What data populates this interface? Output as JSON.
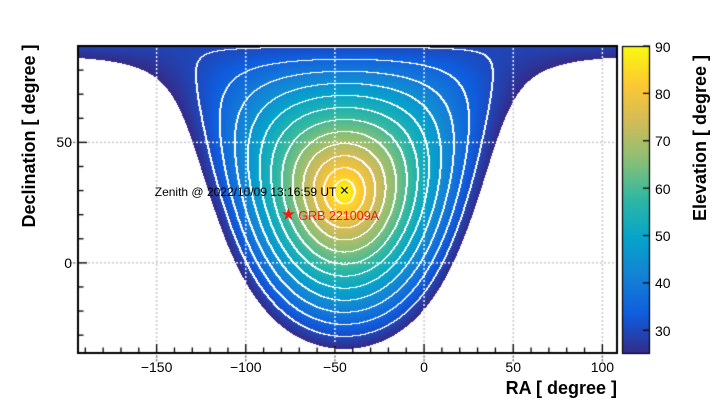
{
  "chart_data": {
    "type": "heatmap",
    "title": "",
    "xlabel": "RA [ degree ]",
    "ylabel": "Declination [ degree ]",
    "colorbar_label": "Elevation [ degree ]",
    "xlim": [
      -194.1,
      108.2
    ],
    "ylim": [
      -37.4,
      90
    ],
    "zlim": [
      25,
      90
    ],
    "x_major_ticks": [
      -150,
      -100,
      -50,
      0,
      50,
      100
    ],
    "x_tick_labels": [
      "−150",
      "−100",
      "−50",
      "0",
      "50",
      "100"
    ],
    "y_major_ticks": [
      0,
      50
    ],
    "y_tick_labels": [
      "0",
      "50"
    ],
    "z_ticks": [
      30,
      40,
      50,
      60,
      70,
      80,
      90
    ],
    "z_tick_labels": [
      "30",
      "40",
      "50",
      "60",
      "70",
      "80",
      "90"
    ],
    "minor_tick_step_deg": 10,
    "grid": true,
    "z_model": "elevation [deg] = asin( sin(dec_z)·sin(dec) + cos(dec_z)·cos(dec)·cos(ra − ra_z) ); filled where elevation ≥ 25",
    "zenith": {
      "ra_deg": -44.7,
      "dec_deg": 29.3,
      "marker": "×",
      "label": "Zenith @ 2022/10/09 13:16:59 UT"
    },
    "grb": {
      "ra_deg": -76.1,
      "dec_deg": 19.3,
      "marker": "★",
      "label": "GRB 221009A"
    },
    "fill_threshold_deg": 25,
    "contour_levels_deg": [
      30,
      35,
      40,
      45,
      50,
      55,
      60,
      65,
      70,
      75,
      80,
      85
    ],
    "palette_name": "root-bird (parula-like)",
    "palette_stops": [
      "#352a87",
      "#0f5cdd",
      "#1481d6",
      "#06a4ca",
      "#2eb7a4",
      "#87bf77",
      "#d1bb59",
      "#fec832",
      "#f9fb0e"
    ],
    "colors": {
      "contour": "#ffffff",
      "grid_on_map": "#ffffff",
      "grid_off_map": "#c8c8c8",
      "outer_grid_stub": "#777777",
      "axis": "#000000",
      "grb_red": "#ee1d14",
      "zenith_text": "#000000",
      "background": "#ffffff"
    }
  }
}
